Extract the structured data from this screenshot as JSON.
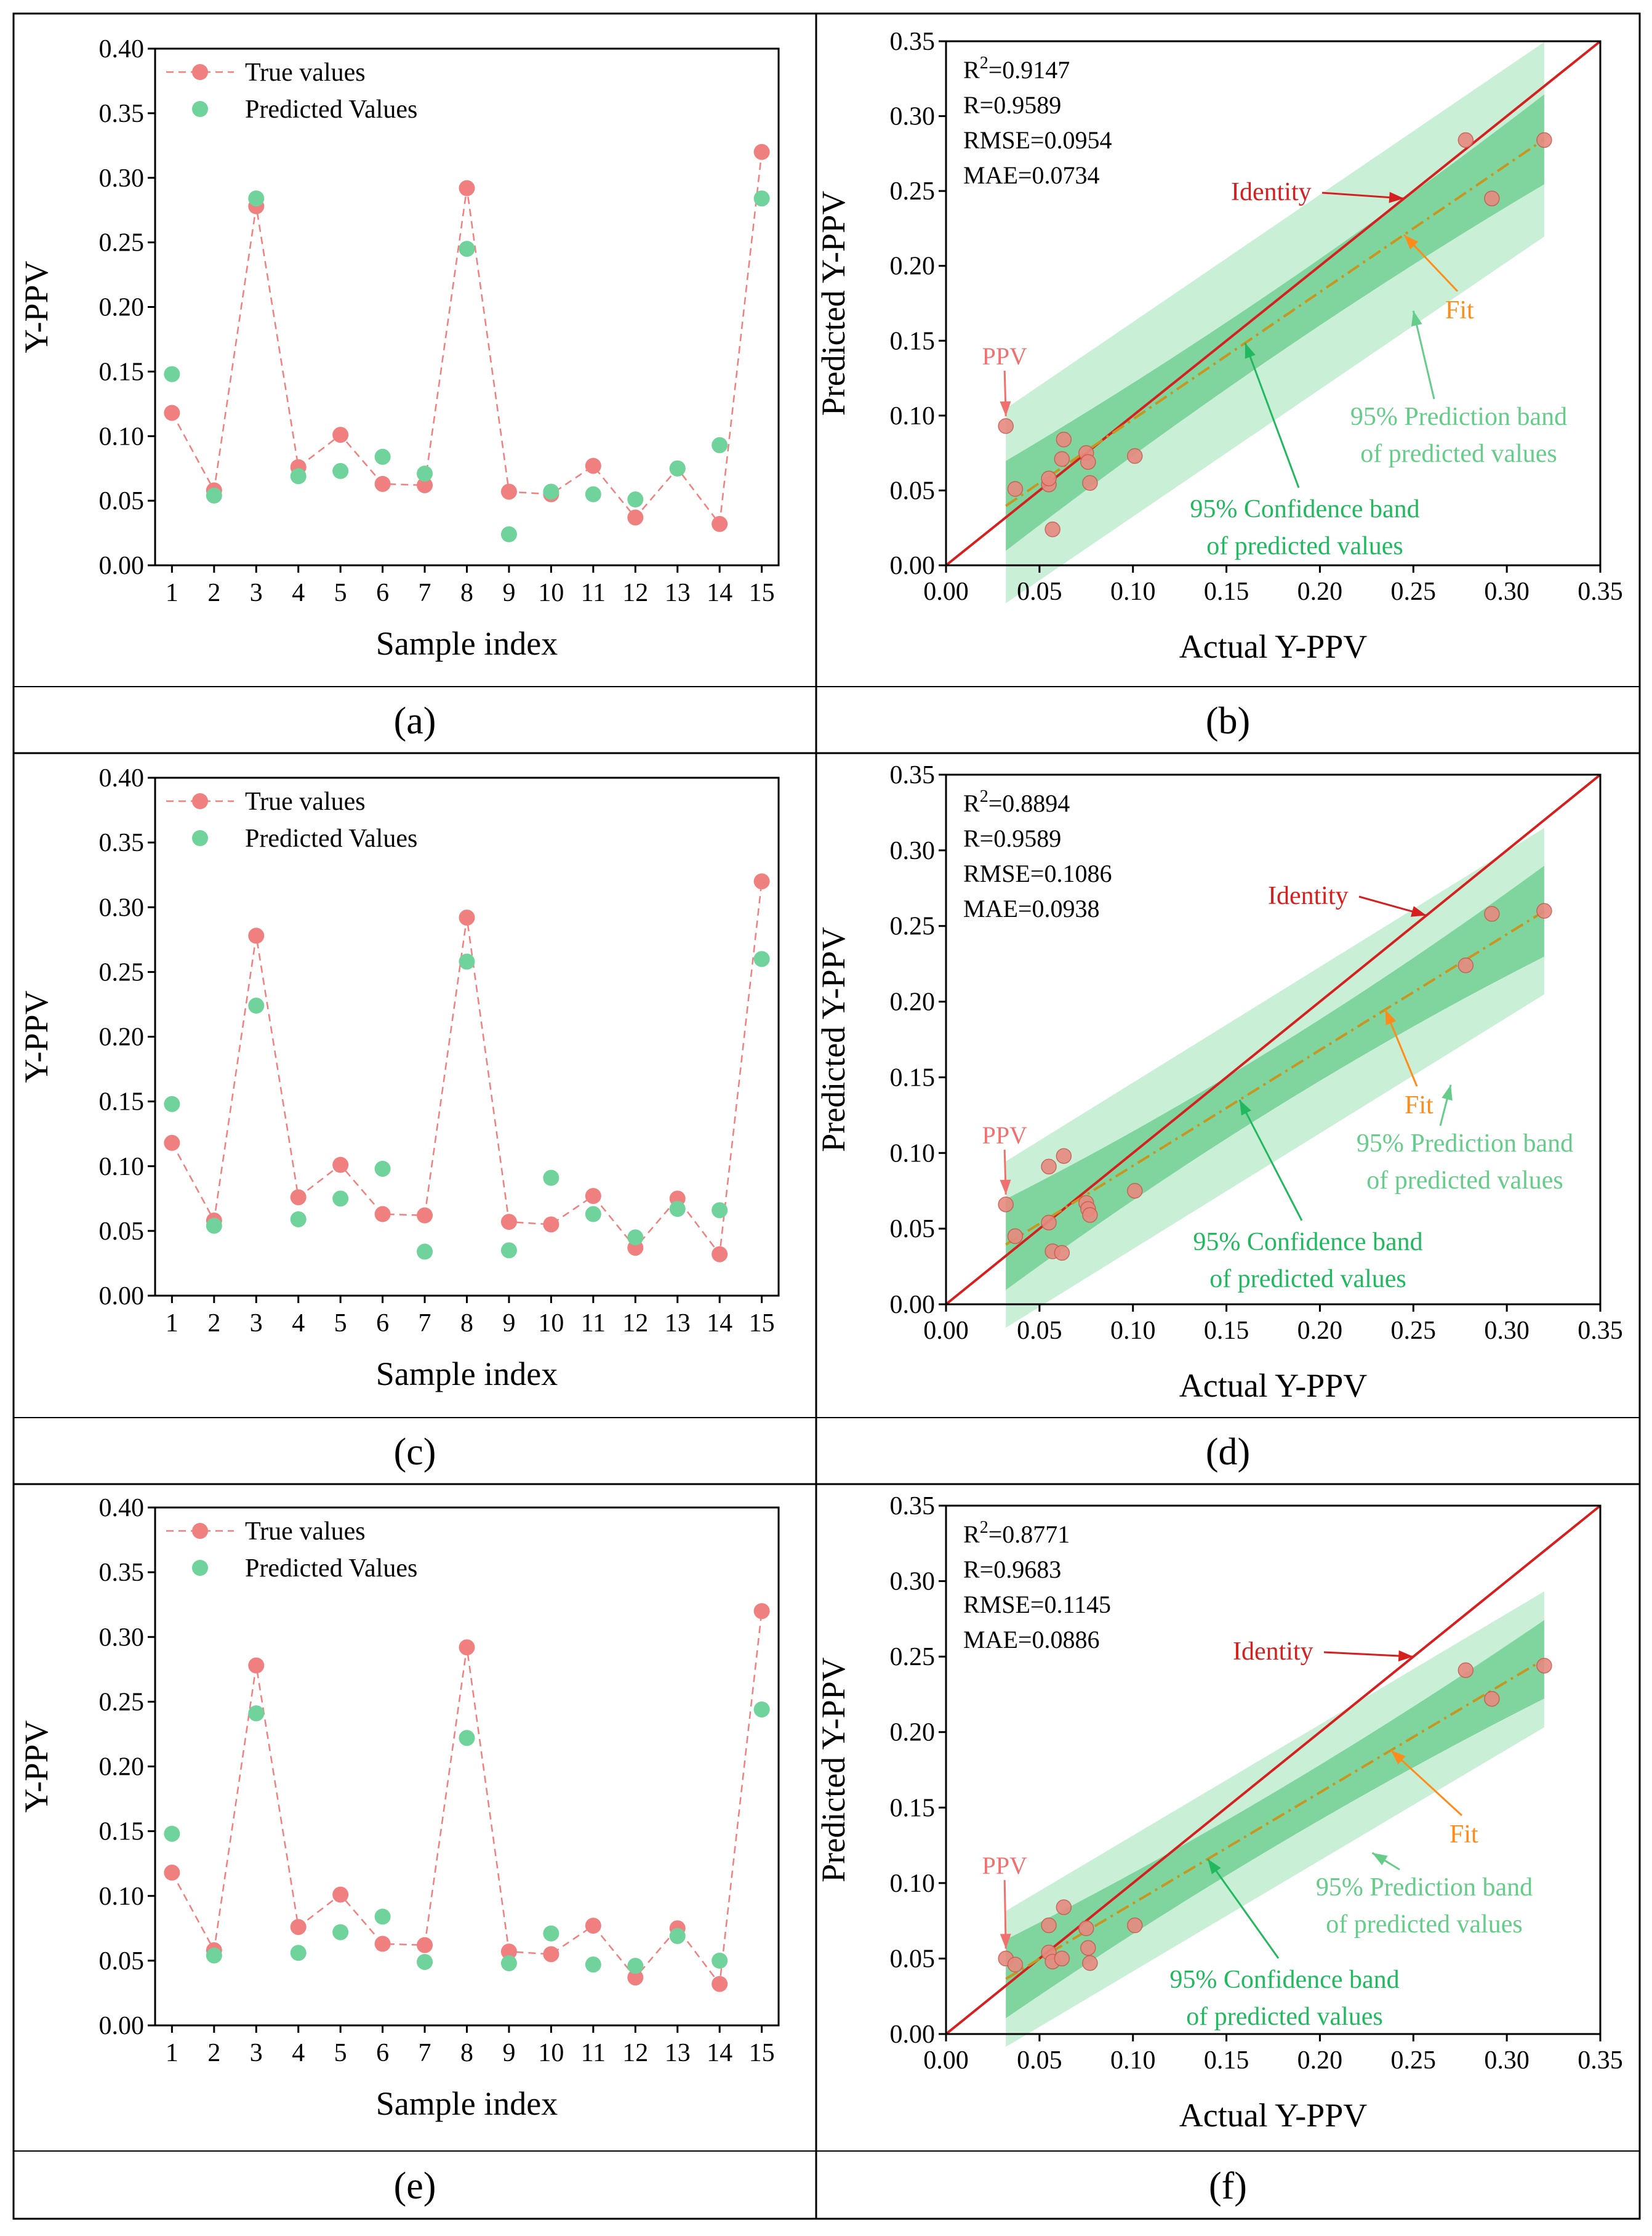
{
  "caption_labels": [
    "(a)",
    "(b)",
    "(c)",
    "(d)",
    "(e)",
    "(f)"
  ],
  "colors": {
    "true_values": "#f08080",
    "predicted_values": "#6fd39b",
    "identity_line": "#d62020",
    "fit_line": "#c89520",
    "fit_arrow": "#ff8c1a",
    "confidence_band": "#66cc8a",
    "prediction_band": "#b7ebc8",
    "ppv_point": "#e88a80",
    "ppv_label": "#f07070",
    "prediction_text": "#66cc8a",
    "confidence_text": "#22b860"
  },
  "chart_data": [
    {
      "panel": "a",
      "type": "line",
      "xlabel": "Sample index",
      "ylabel": "Y-PPV",
      "xlim": [
        0.6,
        15.4
      ],
      "ylim": [
        0,
        0.4
      ],
      "x_ticks": [
        "1",
        "2",
        "3",
        "4",
        "5",
        "6",
        "7",
        "8",
        "9",
        "10",
        "11",
        "12",
        "13",
        "14",
        "15"
      ],
      "y_ticks": [
        "0.00",
        "0.05",
        "0.10",
        "0.15",
        "0.20",
        "0.25",
        "0.30",
        "0.35",
        "0.40"
      ],
      "x": [
        1,
        2,
        3,
        4,
        5,
        6,
        7,
        8,
        9,
        10,
        11,
        12,
        13,
        14,
        15
      ],
      "legend": [
        "True values",
        "Predicted Values"
      ],
      "legend_position": "top-left",
      "series": [
        {
          "name": "True values",
          "values": [
            0.118,
            0.058,
            0.278,
            0.076,
            0.101,
            0.063,
            0.062,
            0.292,
            0.057,
            0.055,
            0.077,
            0.037,
            0.075,
            0.032,
            0.32
          ]
        },
        {
          "name": "Predicted Values",
          "values": [
            0.148,
            0.054,
            0.284,
            0.069,
            0.073,
            0.084,
            0.071,
            0.245,
            0.024,
            0.057,
            0.055,
            0.051,
            0.075,
            0.093,
            0.284
          ]
        }
      ]
    },
    {
      "panel": "b",
      "type": "scatter",
      "xlabel": "Actual Y-PPV",
      "ylabel": "Predicted Y-PPV",
      "xlim": [
        0,
        0.35
      ],
      "ylim": [
        0,
        0.35
      ],
      "x_ticks": [
        "0.00",
        "0.05",
        "0.10",
        "0.15",
        "0.20",
        "0.25",
        "0.30",
        "0.35"
      ],
      "y_ticks": [
        "0.00",
        "0.05",
        "0.10",
        "0.15",
        "0.20",
        "0.25",
        "0.30",
        "0.35"
      ],
      "stats": [
        "R²=0.9147",
        "R=0.9589",
        "RMSE=0.0954",
        "MAE=0.0734"
      ],
      "points": [
        [
          0.032,
          0.093
        ],
        [
          0.037,
          0.051
        ],
        [
          0.055,
          0.054
        ],
        [
          0.055,
          0.058
        ],
        [
          0.057,
          0.024
        ],
        [
          0.062,
          0.071
        ],
        [
          0.063,
          0.084
        ],
        [
          0.075,
          0.075
        ],
        [
          0.076,
          0.069
        ],
        [
          0.077,
          0.055
        ],
        [
          0.101,
          0.073
        ],
        [
          0.278,
          0.284
        ],
        [
          0.292,
          0.245
        ],
        [
          0.32,
          0.284
        ]
      ],
      "fit": {
        "slope": 0.85,
        "intercept": 0.0125,
        "x_range": [
          0.032,
          0.32
        ]
      },
      "confidence_halfwidth": [
        0.022,
        0.03
      ],
      "prediction_halfwidth": 0.065,
      "annotations": {
        "identity": "Identity",
        "fit": "Fit",
        "ppv": "PPV",
        "prediction_band": [
          "95% Prediction band",
          "of predicted values"
        ],
        "confidence_band": [
          "95% Confidence band",
          "of predicted values"
        ]
      }
    },
    {
      "panel": "c",
      "type": "line",
      "xlabel": "Sample index",
      "ylabel": "Y-PPV",
      "xlim": [
        0.6,
        15.4
      ],
      "ylim": [
        0,
        0.4
      ],
      "x_ticks": [
        "1",
        "2",
        "3",
        "4",
        "5",
        "6",
        "7",
        "8",
        "9",
        "10",
        "11",
        "12",
        "13",
        "14",
        "15"
      ],
      "y_ticks": [
        "0.00",
        "0.05",
        "0.10",
        "0.15",
        "0.20",
        "0.25",
        "0.30",
        "0.35",
        "0.40"
      ],
      "x": [
        1,
        2,
        3,
        4,
        5,
        6,
        7,
        8,
        9,
        10,
        11,
        12,
        13,
        14,
        15
      ],
      "legend": [
        "True values",
        "Predicted Values"
      ],
      "legend_position": "top-left",
      "series": [
        {
          "name": "True values",
          "values": [
            0.118,
            0.058,
            0.278,
            0.076,
            0.101,
            0.063,
            0.062,
            0.292,
            0.057,
            0.055,
            0.077,
            0.037,
            0.075,
            0.032,
            0.32
          ]
        },
        {
          "name": "Predicted Values",
          "values": [
            0.148,
            0.054,
            0.224,
            0.059,
            0.075,
            0.098,
            0.034,
            0.258,
            0.035,
            0.091,
            0.063,
            0.045,
            0.067,
            0.066,
            0.26
          ]
        }
      ]
    },
    {
      "panel": "d",
      "type": "scatter",
      "xlabel": "Actual Y-PPV",
      "ylabel": "Predicted Y-PPV",
      "xlim": [
        0,
        0.35
      ],
      "ylim": [
        0,
        0.35
      ],
      "x_ticks": [
        "0.00",
        "0.05",
        "0.10",
        "0.15",
        "0.20",
        "0.25",
        "0.30",
        "0.35"
      ],
      "y_ticks": [
        "0.00",
        "0.05",
        "0.10",
        "0.15",
        "0.20",
        "0.25",
        "0.30",
        "0.35"
      ],
      "stats": [
        "R²=0.8894",
        "R=0.9589",
        "RMSE=0.1086",
        "MAE=0.0938"
      ],
      "points": [
        [
          0.032,
          0.066
        ],
        [
          0.037,
          0.045
        ],
        [
          0.055,
          0.091
        ],
        [
          0.055,
          0.054
        ],
        [
          0.057,
          0.035
        ],
        [
          0.062,
          0.034
        ],
        [
          0.063,
          0.098
        ],
        [
          0.075,
          0.067
        ],
        [
          0.076,
          0.063
        ],
        [
          0.077,
          0.059
        ],
        [
          0.101,
          0.075
        ],
        [
          0.278,
          0.224
        ],
        [
          0.292,
          0.258
        ],
        [
          0.32,
          0.26
        ]
      ],
      "fit": {
        "slope": 0.765,
        "intercept": 0.015,
        "x_range": [
          0.032,
          0.32
        ]
      },
      "confidence_halfwidth": [
        0.02,
        0.03
      ],
      "prediction_halfwidth": 0.055,
      "annotations": {
        "identity": "Identity",
        "fit": "Fit",
        "ppv": "PPV",
        "prediction_band": [
          "95% Prediction band",
          "of predicted values"
        ],
        "confidence_band": [
          "95% Confidence band",
          "of predicted values"
        ]
      }
    },
    {
      "panel": "e",
      "type": "line",
      "xlabel": "Sample index",
      "ylabel": "Y-PPV",
      "xlim": [
        0.6,
        15.4
      ],
      "ylim": [
        0,
        0.4
      ],
      "x_ticks": [
        "1",
        "2",
        "3",
        "4",
        "5",
        "6",
        "7",
        "8",
        "9",
        "10",
        "11",
        "12",
        "13",
        "14",
        "15"
      ],
      "y_ticks": [
        "0.00",
        "0.05",
        "0.10",
        "0.15",
        "0.20",
        "0.25",
        "0.30",
        "0.35",
        "0.40"
      ],
      "x": [
        1,
        2,
        3,
        4,
        5,
        6,
        7,
        8,
        9,
        10,
        11,
        12,
        13,
        14,
        15
      ],
      "legend": [
        "True values",
        "Predicted Values"
      ],
      "legend_position": "top-left",
      "series": [
        {
          "name": "True values",
          "values": [
            0.118,
            0.058,
            0.278,
            0.076,
            0.101,
            0.063,
            0.062,
            0.292,
            0.057,
            0.055,
            0.077,
            0.037,
            0.075,
            0.032,
            0.32
          ]
        },
        {
          "name": "Predicted Values",
          "values": [
            0.148,
            0.054,
            0.241,
            0.056,
            0.072,
            0.084,
            0.049,
            0.222,
            0.048,
            0.071,
            0.047,
            0.046,
            0.069,
            0.05,
            0.244
          ]
        }
      ]
    },
    {
      "panel": "f",
      "type": "scatter",
      "xlabel": "Actual Y-PPV",
      "ylabel": "Predicted Y-PPV",
      "xlim": [
        0,
        0.35
      ],
      "ylim": [
        0,
        0.35
      ],
      "x_ticks": [
        "0.00",
        "0.05",
        "0.10",
        "0.15",
        "0.20",
        "0.25",
        "0.30",
        "0.35"
      ],
      "y_ticks": [
        "0.00",
        "0.05",
        "0.10",
        "0.15",
        "0.20",
        "0.25",
        "0.30",
        "0.35"
      ],
      "stats": [
        "R²=0.8771",
        "R=0.9683",
        "RMSE=0.1145",
        "MAE=0.0886"
      ],
      "points": [
        [
          0.032,
          0.05
        ],
        [
          0.037,
          0.046
        ],
        [
          0.055,
          0.072
        ],
        [
          0.055,
          0.054
        ],
        [
          0.057,
          0.048
        ],
        [
          0.062,
          0.05
        ],
        [
          0.063,
          0.084
        ],
        [
          0.075,
          0.07
        ],
        [
          0.076,
          0.057
        ],
        [
          0.077,
          0.047
        ],
        [
          0.101,
          0.072
        ],
        [
          0.278,
          0.241
        ],
        [
          0.292,
          0.222
        ],
        [
          0.32,
          0.244
        ]
      ],
      "fit": {
        "slope": 0.735,
        "intercept": 0.013,
        "x_range": [
          0.032,
          0.32
        ]
      },
      "confidence_halfwidth": [
        0.018,
        0.026
      ],
      "prediction_halfwidth": 0.045,
      "annotations": {
        "identity": "Identity",
        "fit": "Fit",
        "ppv": "PPV",
        "prediction_band": [
          "95% Prediction band",
          "of predicted values"
        ],
        "confidence_band": [
          "95% Confidence band",
          "of predicted values"
        ]
      }
    }
  ]
}
